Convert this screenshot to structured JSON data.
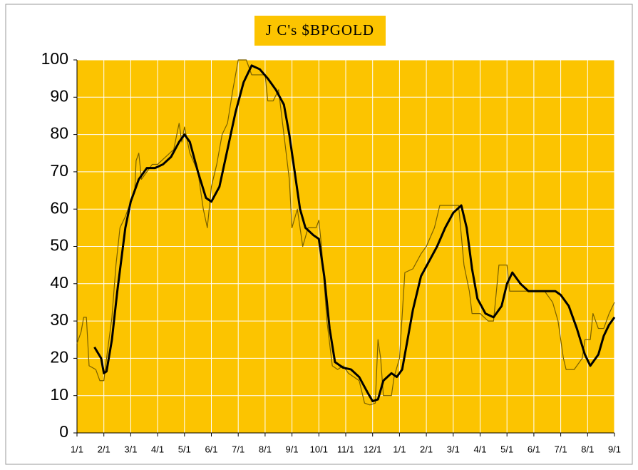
{
  "chart_data": {
    "type": "line",
    "title": "J C's $BPGOLD",
    "xlim": [
      0,
      20
    ],
    "ylim": [
      0,
      100
    ],
    "yticks": [
      0,
      10,
      20,
      30,
      40,
      50,
      60,
      70,
      80,
      90,
      100
    ],
    "xticks": [
      {
        "value": 0,
        "label": "1/1"
      },
      {
        "value": 1,
        "label": "2/1"
      },
      {
        "value": 2,
        "label": "3/1"
      },
      {
        "value": 3,
        "label": "4/1"
      },
      {
        "value": 4,
        "label": "5/1"
      },
      {
        "value": 5,
        "label": "6/1"
      },
      {
        "value": 6,
        "label": "7/1"
      },
      {
        "value": 7,
        "label": "8/1"
      },
      {
        "value": 8,
        "label": "9/1"
      },
      {
        "value": 9,
        "label": "10/1"
      },
      {
        "value": 10,
        "label": "11/1"
      },
      {
        "value": 11,
        "label": "12/1"
      },
      {
        "value": 12,
        "label": "1/1"
      },
      {
        "value": 13,
        "label": "2/1"
      },
      {
        "value": 14,
        "label": "3/1"
      },
      {
        "value": 15,
        "label": "4/1"
      },
      {
        "value": 16,
        "label": "5/1"
      },
      {
        "value": 17,
        "label": "6/1"
      },
      {
        "value": 18,
        "label": "7/1"
      },
      {
        "value": 19,
        "label": "8/1"
      },
      {
        "value": 20,
        "label": "9/1"
      }
    ],
    "grid": true,
    "background": "#fcc400",
    "grid_color": "#ffffff",
    "series": [
      {
        "color": "#7a6000",
        "width": 1.2,
        "x": [
          0,
          0.15,
          0.25,
          0.35,
          0.45,
          0.7,
          0.85,
          1.0,
          1.1,
          1.3,
          1.45,
          1.6,
          1.8,
          2.0,
          2.15,
          2.2,
          2.3,
          2.4,
          2.6,
          2.8,
          3.0,
          3.3,
          3.6,
          3.8,
          3.9,
          4.0,
          4.2,
          4.5,
          4.7,
          4.85,
          5.0,
          5.2,
          5.4,
          5.6,
          5.8,
          6.0,
          6.3,
          6.5,
          6.8,
          7.0,
          7.1,
          7.3,
          7.5,
          7.7,
          7.9,
          8.0,
          8.2,
          8.4,
          8.6,
          8.9,
          9.0,
          9.1,
          9.3,
          9.5,
          9.7,
          9.9,
          10.1,
          10.3,
          10.5,
          10.7,
          10.9,
          11.1,
          11.2,
          11.3,
          11.4,
          11.7,
          11.8,
          12.0,
          12.2,
          12.5,
          12.8,
          13.0,
          13.3,
          13.5,
          14.0,
          14.2,
          14.4,
          14.6,
          14.7,
          15.0,
          15.3,
          15.5,
          15.7,
          16.0,
          16.1,
          16.5,
          17.0,
          17.4,
          17.7,
          17.9,
          18.1,
          18.2,
          18.5,
          18.8,
          18.9,
          19.1,
          19.2,
          19.4,
          19.6,
          19.8,
          20.0
        ],
        "values": [
          24,
          27,
          31,
          31,
          18,
          17,
          14,
          14,
          20,
          31,
          45,
          55,
          58,
          62,
          65,
          73,
          75,
          68,
          70,
          72,
          72,
          74,
          76,
          83,
          78,
          82,
          75,
          70,
          60,
          55,
          66,
          72,
          80,
          83,
          92,
          100,
          100,
          96,
          96,
          96,
          89,
          89,
          92,
          80,
          68,
          55,
          60,
          50,
          55,
          55,
          57,
          50,
          30,
          18,
          17,
          18,
          16,
          15,
          14,
          8,
          7.5,
          8,
          25,
          20,
          10,
          10,
          15,
          20,
          43,
          44,
          48,
          50,
          55,
          61,
          61,
          61,
          45,
          38,
          32,
          32,
          30,
          30,
          45,
          45,
          38,
          38,
          38,
          38,
          35,
          30,
          20,
          17,
          17,
          20,
          25,
          25,
          32,
          28,
          28,
          32,
          35
        ]
      },
      {
        "color": "#000000",
        "width": 3,
        "x": [
          0.65,
          0.9,
          1.0,
          1.1,
          1.3,
          1.5,
          1.8,
          2.0,
          2.3,
          2.6,
          2.9,
          3.2,
          3.5,
          3.8,
          4.0,
          4.2,
          4.5,
          4.8,
          5.0,
          5.3,
          5.6,
          5.9,
          6.2,
          6.5,
          6.8,
          7.1,
          7.4,
          7.7,
          7.9,
          8.1,
          8.3,
          8.5,
          8.8,
          9.0,
          9.2,
          9.4,
          9.6,
          9.9,
          10.2,
          10.5,
          10.8,
          11.0,
          11.2,
          11.4,
          11.7,
          11.9,
          12.1,
          12.3,
          12.5,
          12.8,
          13.1,
          13.4,
          13.7,
          14.0,
          14.3,
          14.5,
          14.7,
          14.9,
          15.2,
          15.5,
          15.8,
          16.0,
          16.2,
          16.5,
          16.8,
          17.3,
          17.8,
          18.0,
          18.3,
          18.6,
          18.9,
          19.1,
          19.4,
          19.6,
          19.8,
          20.0
        ],
        "values": [
          23,
          20,
          16,
          16.5,
          25,
          38,
          55,
          62,
          68,
          71,
          71,
          72,
          74,
          78,
          80,
          78,
          70,
          63,
          62,
          66,
          76,
          86,
          94,
          98.5,
          97.5,
          95,
          92,
          88,
          80,
          70,
          60,
          55,
          53,
          52,
          42,
          28,
          19,
          17.5,
          17,
          15,
          11,
          8.5,
          9,
          14,
          16,
          15,
          17,
          25,
          33,
          42,
          46,
          50,
          55,
          59,
          61,
          55,
          44,
          36,
          32,
          31,
          34,
          40,
          43,
          40,
          38,
          38,
          38,
          37,
          34,
          28,
          21,
          18,
          21,
          26,
          29,
          31
        ]
      }
    ]
  }
}
